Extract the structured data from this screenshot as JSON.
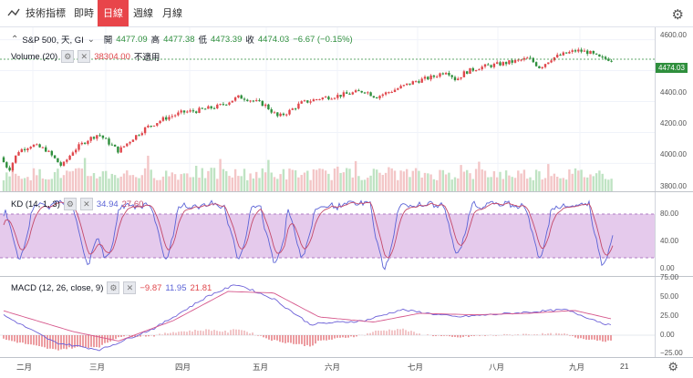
{
  "toolbar": {
    "items": [
      "技術指標",
      "即時",
      "日線",
      "週線",
      "月線"
    ],
    "active": "日線"
  },
  "colors": {
    "up": "#e0474c",
    "down": "#2f8f3d",
    "kd_k": "#5b63d6",
    "kd_d": "#c3496a",
    "macd": "#6e62d8",
    "signal": "#d6588c",
    "band": "#dcb8e6"
  },
  "main_legend": {
    "symbol": "S&P 500, 天, GI",
    "open_label": "開",
    "open": "4477.09",
    "high_label": "高",
    "high": "4477.38",
    "low_label": "低",
    "low": "4473.39",
    "close_label": "收",
    "close": "4474.03",
    "change": "−6.67 (−0.15%)"
  },
  "volume_legend": {
    "name": "Volume (20)",
    "value": "38304.00",
    "note": "不適用"
  },
  "kd_legend": {
    "name": "KD (14, 1, 3)",
    "k": "34.94",
    "d": "27.60"
  },
  "macd_legend": {
    "name": "MACD (12, 26, close, 9)",
    "hist": "−9.87",
    "macd": "11.95",
    "signal": "21.81"
  },
  "price_axis": {
    "ticks": [
      "4600.00",
      "4400.00",
      "4200.00",
      "4000.00",
      "3800.00"
    ],
    "last": "4474.03"
  },
  "kd_axis": {
    "ticks": [
      "80.00",
      "40.00",
      "0.00"
    ]
  },
  "macd_axis": {
    "ticks": [
      "75.00",
      "50.00",
      "25.00",
      "0.00",
      "−25.00"
    ]
  },
  "x_axis": {
    "labels": [
      "二月",
      "三月",
      "四月",
      "五月",
      "六月",
      "七月",
      "八月",
      "九月",
      "21"
    ]
  },
  "chart_data": {
    "type": "candlestick",
    "price_range": [
      3620,
      4680
    ],
    "price_anchors": [
      [
        0,
        3840
      ],
      [
        5,
        3800
      ],
      [
        10,
        3760
      ],
      [
        20,
        3880
      ],
      [
        35,
        3920
      ],
      [
        50,
        3890
      ],
      [
        60,
        3830
      ],
      [
        68,
        3780
      ],
      [
        80,
        3880
      ],
      [
        95,
        3950
      ],
      [
        108,
        3990
      ],
      [
        120,
        3930
      ],
      [
        130,
        3880
      ],
      [
        145,
        3960
      ],
      [
        160,
        4030
      ],
      [
        180,
        4090
      ],
      [
        200,
        4130
      ],
      [
        215,
        4140
      ],
      [
        240,
        4170
      ],
      [
        262,
        4230
      ],
      [
        270,
        4220
      ],
      [
        290,
        4180
      ],
      [
        305,
        4100
      ],
      [
        318,
        4140
      ],
      [
        330,
        4190
      ],
      [
        350,
        4220
      ],
      [
        372,
        4240
      ],
      [
        400,
        4270
      ],
      [
        412,
        4230
      ],
      [
        430,
        4270
      ],
      [
        455,
        4330
      ],
      [
        475,
        4360
      ],
      [
        490,
        4400
      ],
      [
        500,
        4340
      ],
      [
        510,
        4390
      ],
      [
        525,
        4420
      ],
      [
        545,
        4440
      ],
      [
        565,
        4460
      ],
      [
        580,
        4480
      ],
      [
        592,
        4420
      ],
      [
        605,
        4480
      ],
      [
        620,
        4510
      ],
      [
        632,
        4530
      ],
      [
        645,
        4520
      ],
      [
        658,
        4480
      ],
      [
        670,
        4474
      ]
    ],
    "volume_range": [
      0,
      100
    ],
    "kd_range": [
      -5,
      110
    ],
    "kd_band": [
      20,
      80
    ],
    "macd_range": [
      -30,
      80
    ]
  }
}
